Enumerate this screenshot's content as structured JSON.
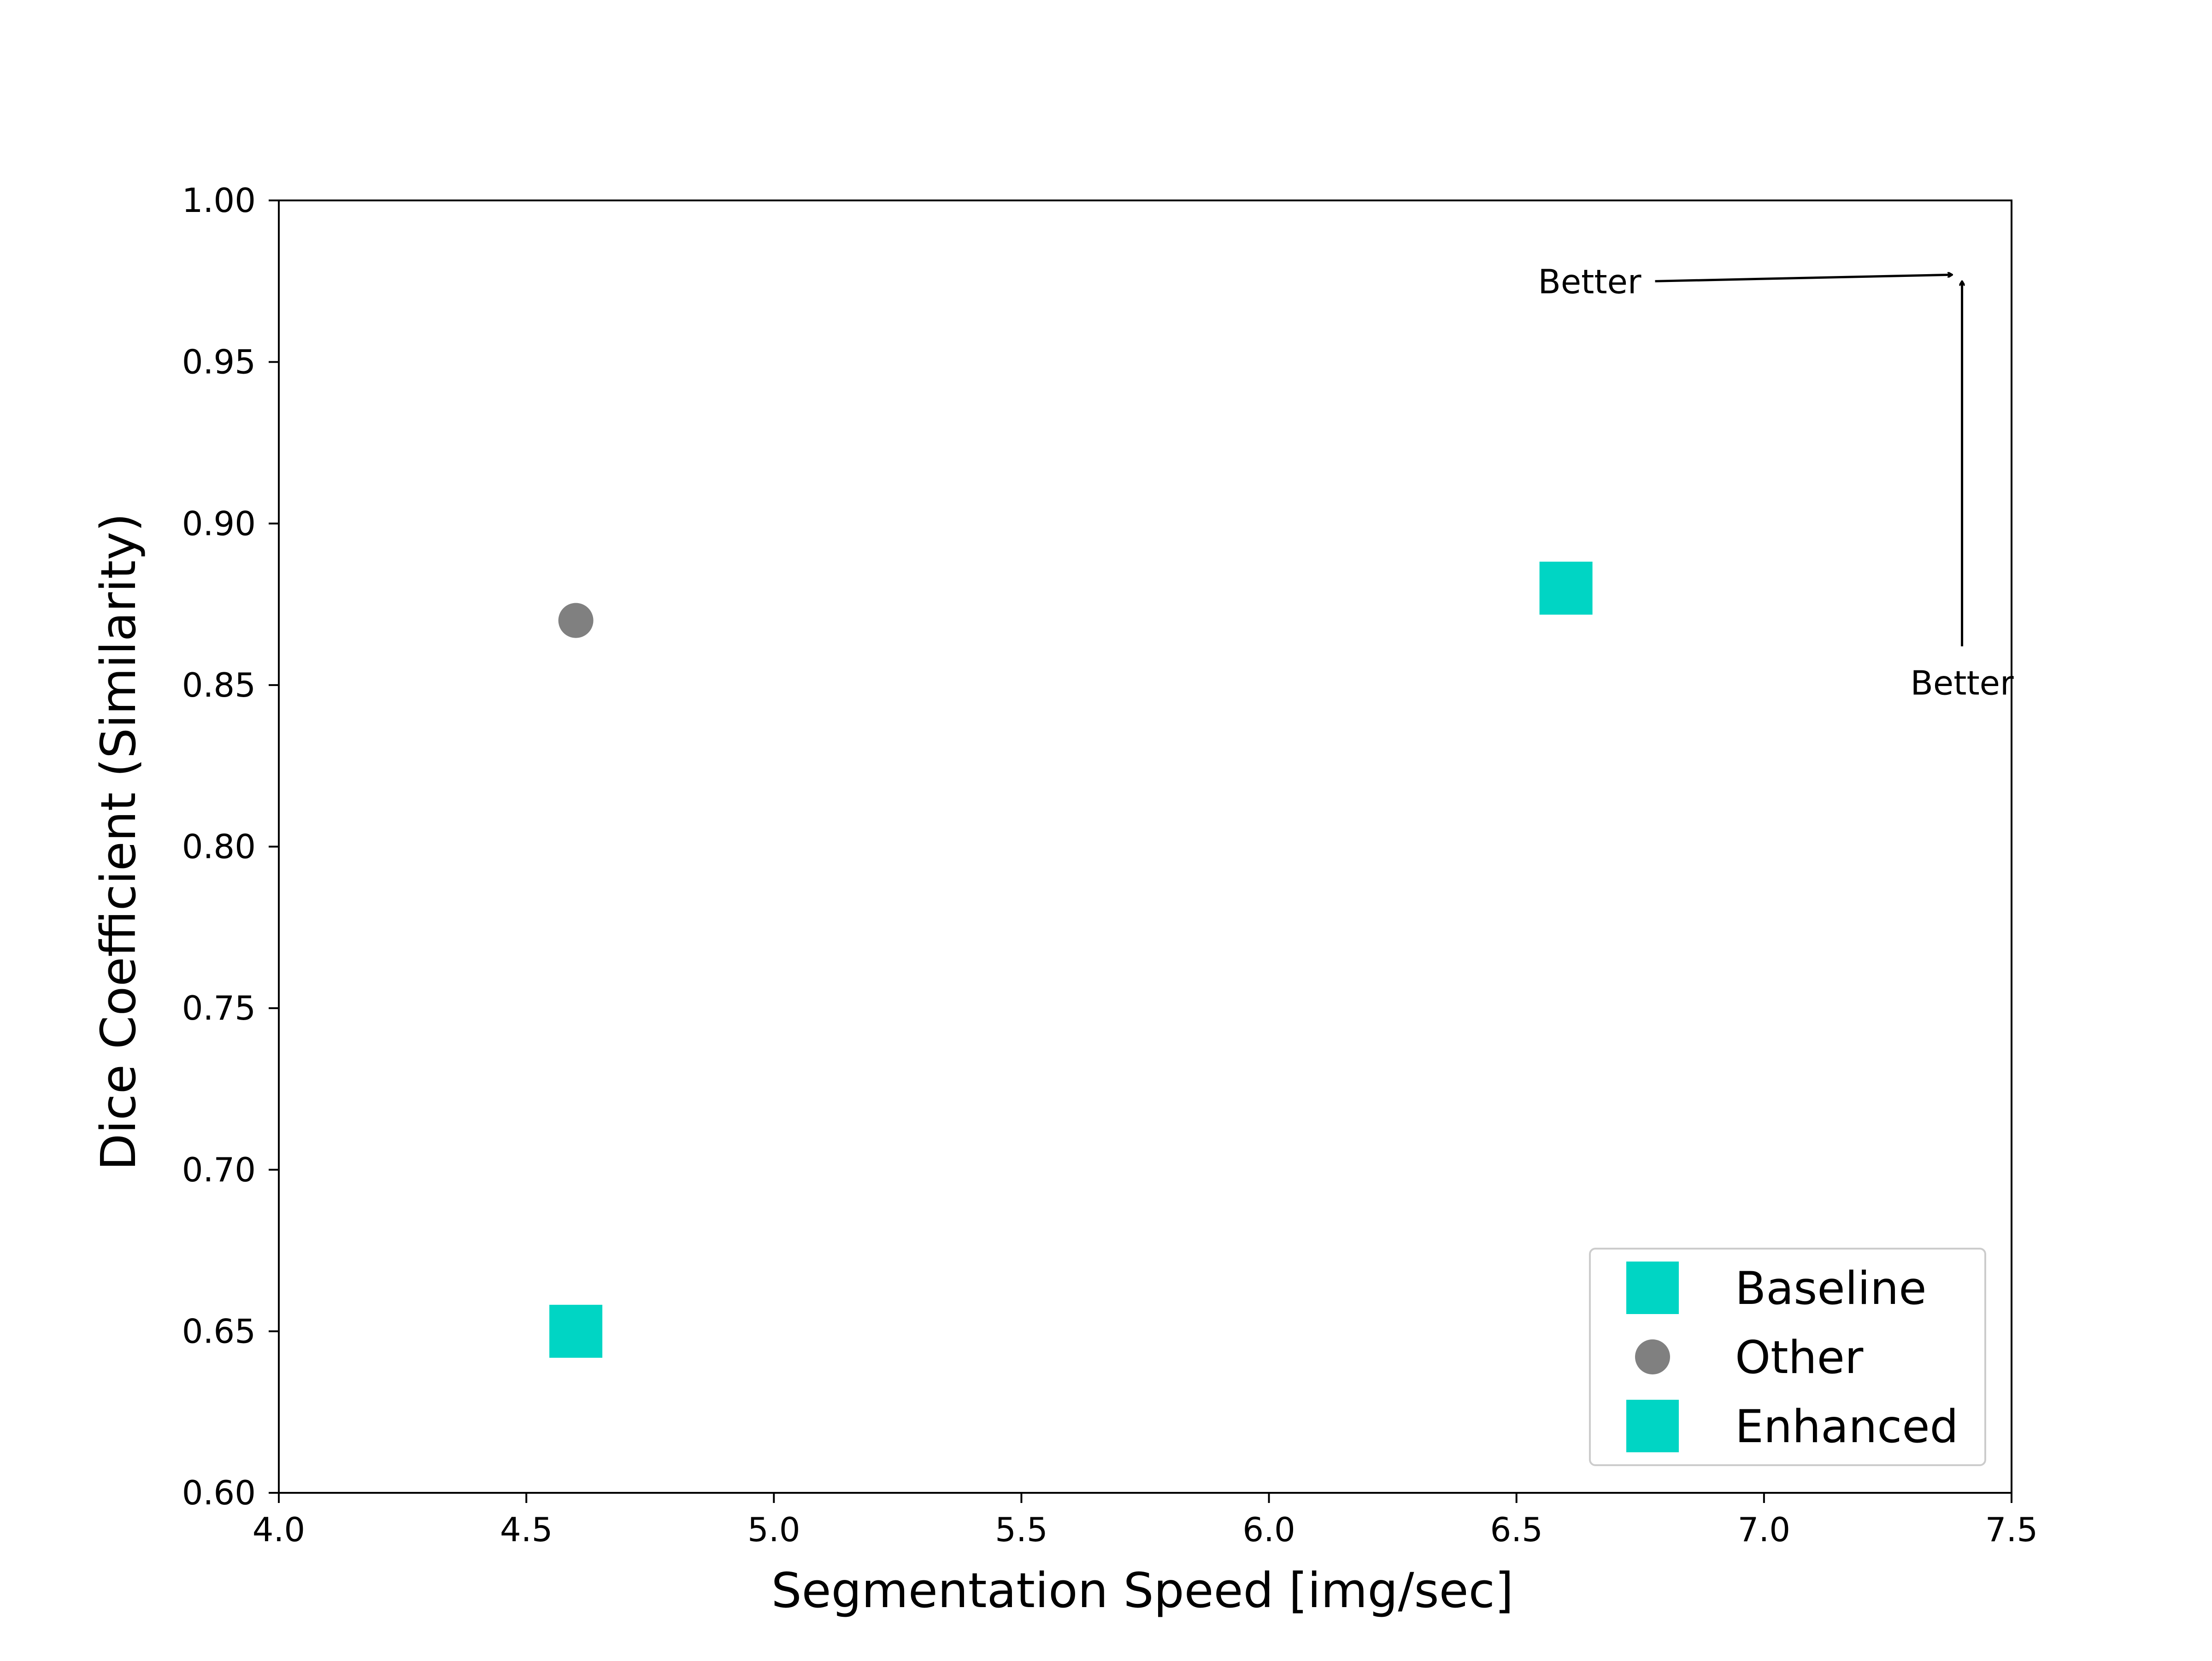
{
  "chart_data": {
    "type": "scatter",
    "title": "",
    "xlabel": "Segmentation Speed [img/sec]",
    "ylabel": "Dice Coefficient (Similarity)",
    "xlim": [
      4.0,
      7.5
    ],
    "ylim": [
      0.6,
      1.0
    ],
    "xticks": [
      4.0,
      4.5,
      5.0,
      5.5,
      6.0,
      6.5,
      7.0,
      7.5
    ],
    "xtick_labels": [
      "4.0",
      "4.5",
      "5.0",
      "5.5",
      "6.0",
      "6.5",
      "7.0",
      "7.5"
    ],
    "yticks": [
      0.6,
      0.65,
      0.7,
      0.75,
      0.8,
      0.85,
      0.9,
      0.95,
      1.0
    ],
    "ytick_labels": [
      "0.60",
      "0.65",
      "0.70",
      "0.75",
      "0.80",
      "0.85",
      "0.90",
      "0.95",
      "1.00"
    ],
    "grid": false,
    "legend_position": "lower-right",
    "series": [
      {
        "name": "Baseline",
        "marker": "square",
        "color": "#00D5C4",
        "points": [
          {
            "x": 4.6,
            "y": 0.65
          }
        ]
      },
      {
        "name": "Other",
        "marker": "circle",
        "color": "#808080",
        "points": [
          {
            "x": 4.6,
            "y": 0.87
          }
        ]
      },
      {
        "name": "Enhanced",
        "marker": "square",
        "color": "#00D5C4",
        "points": [
          {
            "x": 6.6,
            "y": 0.88
          }
        ]
      }
    ],
    "annotations": [
      {
        "text": "Better",
        "direction": "horizontal",
        "arrow_from": {
          "x": 6.78,
          "y": 0.975
        },
        "arrow_to": {
          "x": 7.38,
          "y": 0.977
        }
      },
      {
        "text": "Better",
        "direction": "vertical",
        "arrow_from": {
          "x": 7.4,
          "y": 0.862
        },
        "arrow_to": {
          "x": 7.4,
          "y": 0.975
        }
      }
    ]
  }
}
